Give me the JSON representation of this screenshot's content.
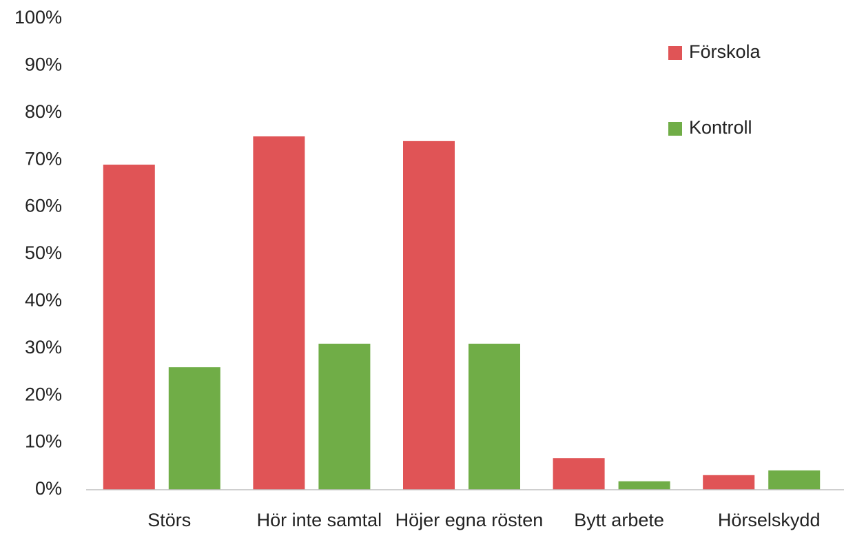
{
  "chart_data": {
    "type": "bar",
    "categories": [
      "Störs",
      "Hör inte samtal",
      "Höjer egna rösten",
      "Bytt arbete",
      "Hörselskydd"
    ],
    "series": [
      {
        "name": "Förskola",
        "color": "#e05456",
        "values": [
          69,
          75,
          74,
          6.7,
          3.1
        ]
      },
      {
        "name": "Kontroll",
        "color": "#70ad47",
        "values": [
          26,
          31,
          31,
          1.8,
          4.1
        ]
      }
    ],
    "ylim": [
      0,
      100
    ],
    "yticks": [
      {
        "value": 0,
        "label": "0%"
      },
      {
        "value": 10,
        "label": "10%"
      },
      {
        "value": 20,
        "label": "20%"
      },
      {
        "value": 30,
        "label": "30%"
      },
      {
        "value": 40,
        "label": "40%"
      },
      {
        "value": 50,
        "label": "50%"
      },
      {
        "value": 60,
        "label": "60%"
      },
      {
        "value": 70,
        "label": "70%"
      },
      {
        "value": 80,
        "label": "80%"
      },
      {
        "value": 90,
        "label": "90%"
      },
      {
        "value": 100,
        "label": "100%"
      }
    ],
    "grid": false,
    "legend": "upper right"
  }
}
